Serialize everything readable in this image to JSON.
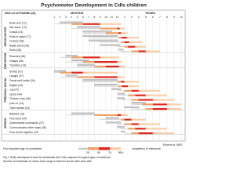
{
  "chart_data": {
    "type": "range",
    "title": "Psychomotor Development in Cdls children",
    "skills_header": "SKILLS ATTAINED (N)",
    "months_label": "MONTHS",
    "years_label": "YEARS",
    "xlim": [
      0,
      120
    ],
    "xticks": [
      1,
      2,
      3,
      4,
      5,
      6,
      7,
      8,
      9,
      10,
      11,
      12,
      {
        "value": 24,
        "label": "2"
      },
      {
        "value": 36,
        "label": "3"
      },
      {
        "value": 48,
        "label": "4"
      },
      {
        "value": 60,
        "label": "5"
      },
      {
        "value": 72,
        "label": "6"
      },
      {
        "value": 84,
        "label": "7"
      },
      {
        "value": 96,
        "label": "8"
      },
      {
        "value": 108,
        "label": "9"
      },
      {
        "value": 120,
        "label": "10"
      }
    ],
    "grid": true,
    "normal_color": "#c8c8c8",
    "colors": [
      "#f2a066",
      "#e3261b",
      "#f9cfa8"
    ],
    "groups": [
      {
        "name": "GROSS MOTOR",
        "rows": [
          {
            "label": "Rolls over (71)",
            "normal": [
              2,
              6
            ],
            "first": 1,
            "percentiles": [
              4,
              6,
              9,
              18
            ]
          },
          {
            "label": "Sits alone (73)",
            "normal": [
              5,
              9
            ],
            "first": 4,
            "percentiles": [
              9,
              12,
              16,
              24
            ]
          },
          {
            "label": "Crawls (23)",
            "normal": [
              6,
              11
            ],
            "first": 6,
            "percentiles": [
              10,
              14,
              18,
              30
            ]
          },
          {
            "label": "Pulls to stand (77)",
            "normal": [
              6,
              12
            ],
            "first": 7,
            "percentiles": [
              14,
              19,
              28,
              48
            ]
          },
          {
            "label": "Cruises (46)",
            "normal": [
              7,
              13
            ],
            "first": 9,
            "percentiles": [
              18,
              24,
              32,
              54
            ]
          },
          {
            "label": "Walks alone (64)",
            "normal": [
              9,
              17
            ],
            "first": 12,
            "percentiles": [
              24,
              30,
              42,
              60
            ]
          },
          {
            "label": "Runs (28)",
            "normal": [
              14,
              22
            ],
            "first": 18,
            "percentiles": [
              36,
              48,
              60,
              84
            ]
          }
        ]
      },
      {
        "name": "FINE MOTOR",
        "rows": [
          {
            "label": "Reaches (68)",
            "normal": [
              3,
              5
            ],
            "first": 2,
            "percentiles": [
              4,
              6,
              9,
              15
            ]
          },
          {
            "label": "Grasps (46)",
            "normal": [
              4,
              7
            ],
            "first": 3,
            "percentiles": [
              6,
              8,
              12,
              20
            ]
          },
          {
            "label": "Transfers (14)",
            "normal": [
              5,
              8
            ],
            "first": 5,
            "percentiles": [
              8,
              10,
              15,
              24
            ]
          }
        ]
      },
      {
        "name": "PERSONAL SOCIAL",
        "rows": [
          {
            "label": "Smiles (67)",
            "normal": [
              1,
              3
            ],
            "first": 1,
            "percentiles": [
              2,
              4,
              6,
              12
            ]
          },
          {
            "label": "Laughs (37)",
            "normal": [
              3,
              5
            ],
            "first": 2,
            "percentiles": [
              5,
              8,
              12,
              24
            ]
          },
          {
            "label": "Feeds self: bottle (34)",
            "normal": [
              6,
              12
            ],
            "first": 6,
            "percentiles": [
              12,
              18,
              24,
              48
            ]
          },
          {
            "label": "fingers (43)",
            "normal": [
              8,
              12
            ],
            "first": 8,
            "percentiles": [
              14,
              20,
              30,
              48
            ]
          },
          {
            "label": "cup (47)",
            "normal": [
              11,
              18
            ],
            "first": 12,
            "percentiles": [
              24,
              36,
              48,
              84
            ]
          },
          {
            "label": "spoon (44)",
            "normal": [
              13,
              24
            ],
            "first": 14,
            "percentiles": [
              30,
              42,
              60,
              96
            ]
          },
          {
            "label": "Clothes: help (46)",
            "normal": [
              12,
              24
            ],
            "first": 18,
            "percentiles": [
              36,
              48,
              72,
              108
            ]
          },
          {
            "label": "puts on (14)",
            "normal": [
              36,
              60
            ],
            "first": 36,
            "percentiles": [
              54,
              72,
              96,
              120
            ]
          },
          {
            "label": "Toilet trained (22)",
            "normal": [
              24,
              48
            ],
            "first": 36,
            "percentiles": [
              60,
              72,
              96,
              120
            ]
          }
        ]
      },
      {
        "name": "SPEECH",
        "rows": [
          {
            "label": "Babbles (16)",
            "normal": [
              4,
              8
            ],
            "first": 3,
            "percentiles": [
              8,
              12,
              18,
              30
            ]
          },
          {
            "label": "First word (44)",
            "normal": [
              10,
              15
            ],
            "first": 9,
            "percentiles": [
              18,
              24,
              36,
              60
            ]
          },
          {
            "label": "Understands commands (37)",
            "normal": [
              10,
              18
            ],
            "first": 12,
            "percentiles": [
              24,
              36,
              48,
              84
            ]
          },
          {
            "label": "Communicates other ways (35)",
            "normal": [
              12,
              24
            ],
            "first": 18,
            "percentiles": [
              30,
              42,
              60,
              96
            ]
          },
          {
            "label": "Puts words together (22)",
            "normal": [
              18,
              24
            ],
            "first": 24,
            "percentiles": [
              36,
              48,
              72,
              108
            ]
          }
        ]
      }
    ],
    "legend": {
      "first_label": "First reported age of completion",
      "completion_label": "completion of milestone",
      "percentile_labels": [
        "25",
        "50",
        "75",
        "95%"
      ]
    },
    "caption": [
      "Fig 1. Skills development chart for individuals with Cdls compared to typical ages of milestone.",
      "Number of individuals on whom each range is based is shown after each skill."
    ],
    "author": "Kline et al 1993"
  }
}
